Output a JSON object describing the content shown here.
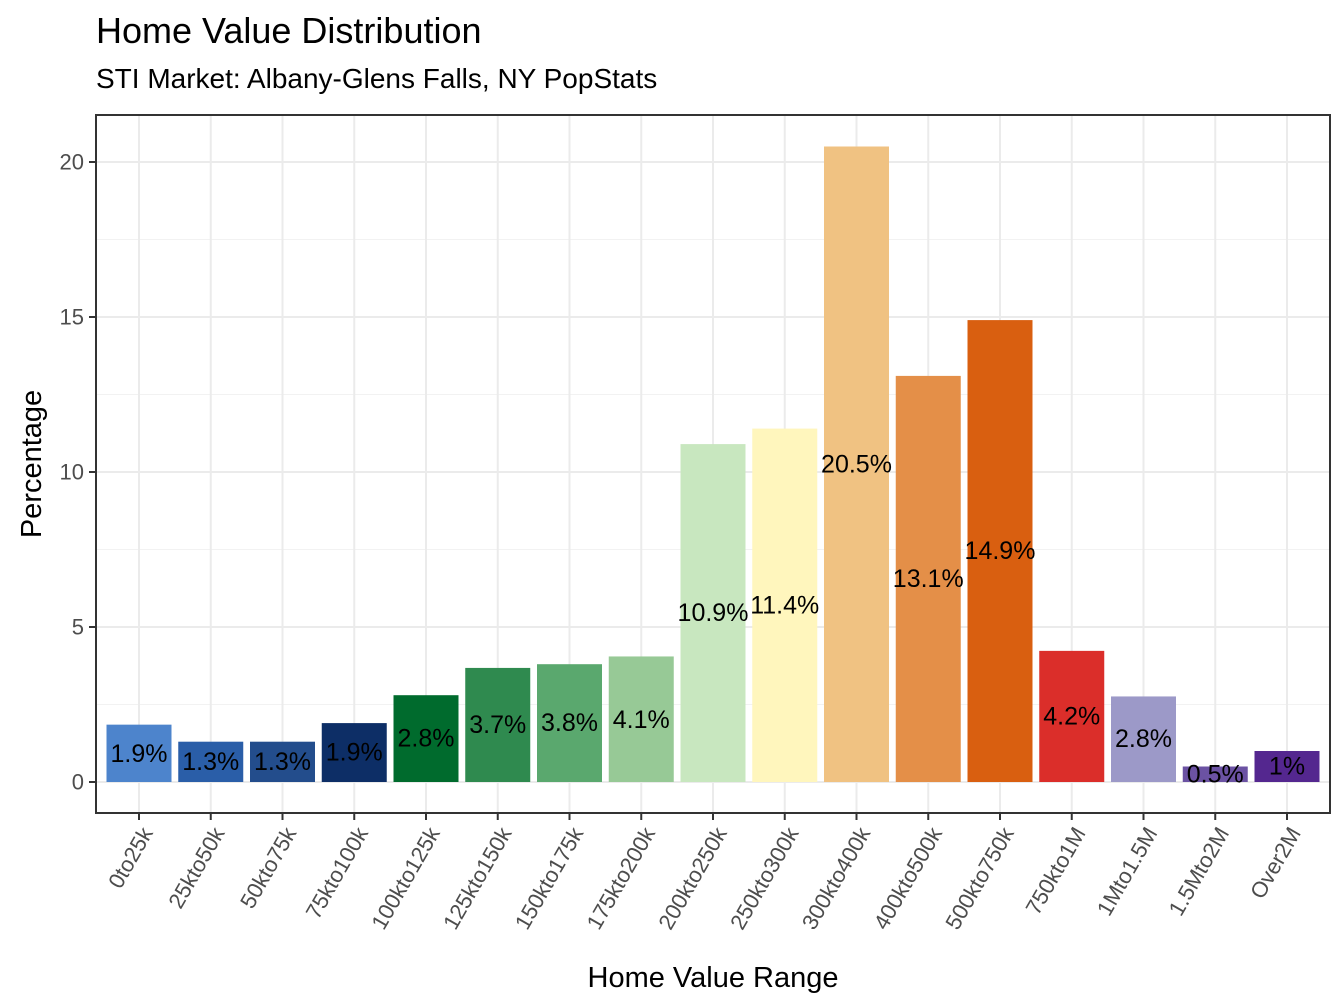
{
  "chart_data": {
    "type": "bar",
    "title": "Home Value Distribution",
    "subtitle": "STI Market: Albany-Glens Falls, NY PopStats",
    "xlabel": "Home Value Range",
    "ylabel": "Percentage",
    "ylim": [
      -1.0,
      21.5
    ],
    "yticks": [
      0,
      5,
      10,
      15,
      20
    ],
    "grid": true,
    "legend": "none",
    "categories": [
      "0to25k",
      "25kto50k",
      "50kto75k",
      "75kto100k",
      "100kto125k",
      "125kto150k",
      "150kto175k",
      "175kto200k",
      "200kto250k",
      "250kto300k",
      "300kto400k",
      "400kto500k",
      "500kto750k",
      "750kto1M",
      "1Mto1.5M",
      "1.5Mto2M",
      "Over2M"
    ],
    "values": [
      1.85,
      1.3,
      1.3,
      1.9,
      2.8,
      3.68,
      3.8,
      4.05,
      10.9,
      11.4,
      20.5,
      13.1,
      14.9,
      4.23,
      2.76,
      0.5,
      1.0
    ],
    "labels": [
      "1.9%",
      "1.3%",
      "1.3%",
      "1.9%",
      "2.8%",
      "3.7%",
      "3.8%",
      "4.1%",
      "10.9%",
      "11.4%",
      "20.5%",
      "13.1%",
      "14.9%",
      "4.2%",
      "2.8%",
      "0.5%",
      "1%"
    ],
    "colors": [
      "#4d84cc",
      "#2a5ea8",
      "#234d8c",
      "#0d2e66",
      "#006b2d",
      "#2f8a4f",
      "#5aa86e",
      "#97c996",
      "#c8e7bf",
      "#fff6bd",
      "#f0c282",
      "#e48f48",
      "#d95f10",
      "#db2e2a",
      "#9c99c8",
      "#6b52a3",
      "#54278f"
    ],
    "label_y": [
      0.9,
      0.65,
      0.65,
      0.95,
      1.4,
      1.84,
      1.9,
      2.0,
      5.45,
      5.7,
      10.25,
      6.55,
      7.45,
      2.12,
      1.38,
      0.25,
      0.5
    ]
  }
}
